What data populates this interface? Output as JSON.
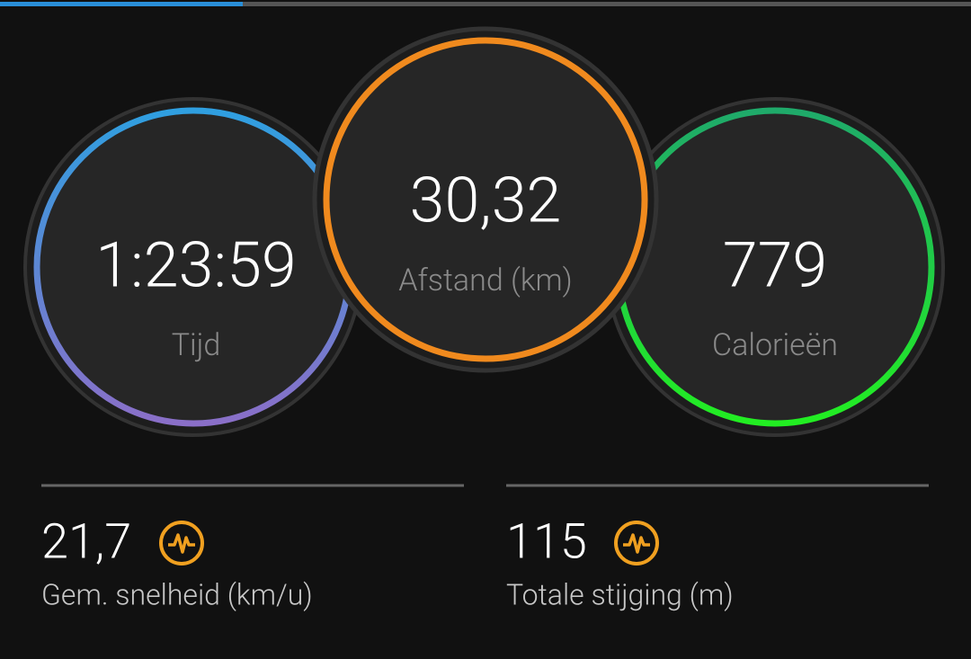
{
  "rings": [
    {
      "value": "1:23:59",
      "label": "Tijd"
    },
    {
      "value": "30,32",
      "label": "Afstand (km)"
    },
    {
      "value": "779",
      "label": "Calorieën"
    }
  ],
  "stats": [
    {
      "value": "21,7",
      "label": "Gem. snelheid (km/u)"
    },
    {
      "value": "115",
      "label": "Totale stijging (m)"
    }
  ]
}
